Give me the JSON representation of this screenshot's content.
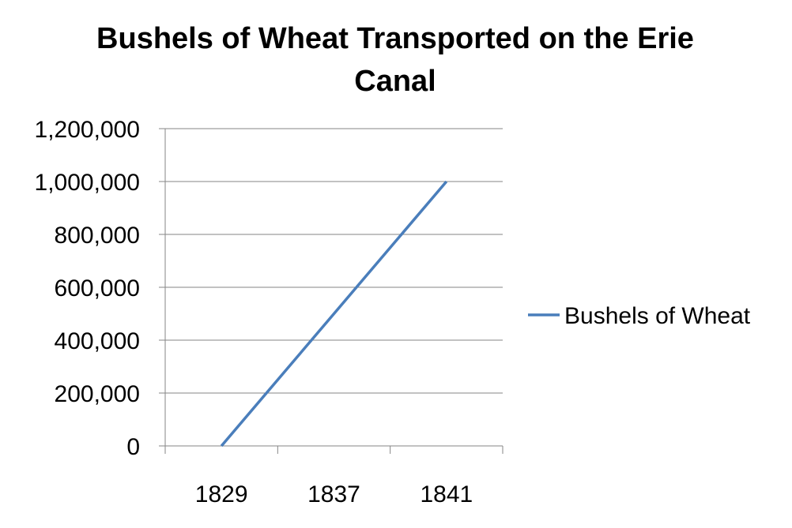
{
  "chart_data": {
    "type": "line",
    "title": "Bushels of Wheat Transported on the Erie Canal",
    "xlabel": "",
    "ylabel": "",
    "categories": [
      "1829",
      "1837",
      "1841"
    ],
    "series": [
      {
        "name": "Bushels of Wheat",
        "values": [
          0,
          500000,
          1000000
        ],
        "color": "#4a7ebb"
      }
    ],
    "ylim": [
      0,
      1200000
    ],
    "yticks": [
      0,
      200000,
      400000,
      600000,
      800000,
      1000000,
      1200000
    ],
    "ytick_labels": [
      "0",
      "200,000",
      "400,000",
      "600,000",
      "800,000",
      "1,000,000",
      "1,200,000"
    ],
    "grid": true,
    "legend_position": "right"
  }
}
